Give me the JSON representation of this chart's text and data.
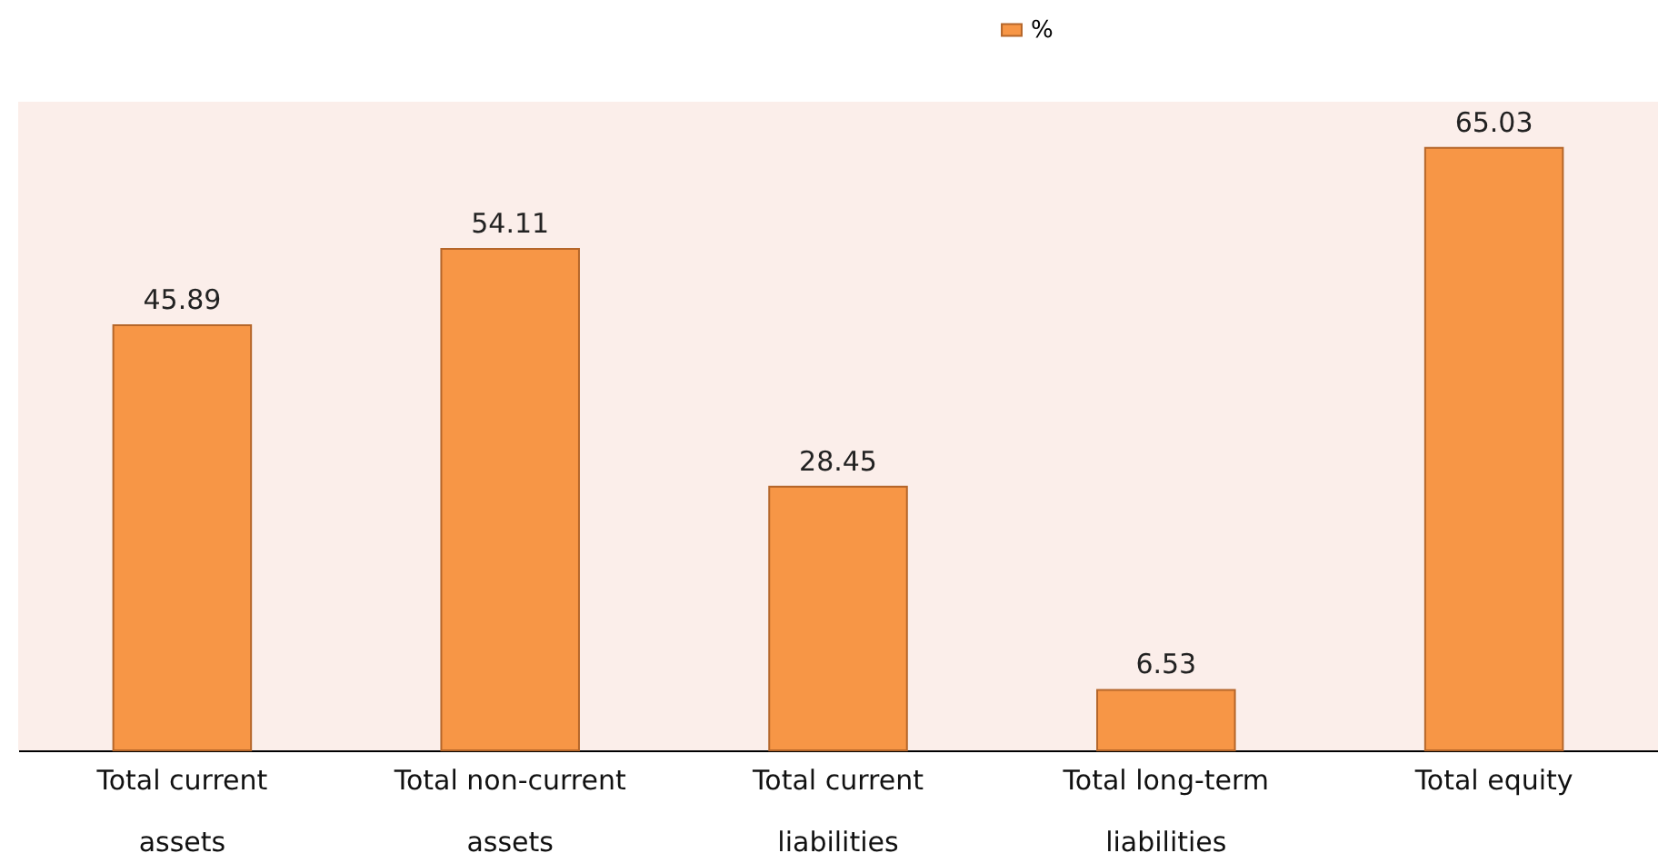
{
  "chart_data": {
    "type": "bar",
    "categories": [
      "Total current assets",
      "Total non-current assets",
      "Total current liabilities",
      "Total long-term liabilities",
      "Total equity"
    ],
    "series": [
      {
        "name": "%",
        "color": "#f79646",
        "values": [
          45.89,
          54.11,
          28.45,
          6.53,
          65.03
        ]
      }
    ],
    "data_labels": true,
    "legend": "top",
    "tick_labels": "x",
    "grid": false
  }
}
